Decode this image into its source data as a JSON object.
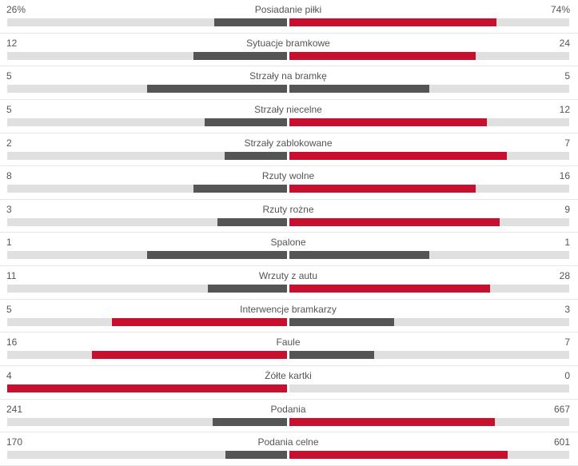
{
  "colors": {
    "leading": "#c8102e",
    "trailing": "#555555",
    "track": "#e0e0e0"
  },
  "stats": [
    {
      "label": "Posiadanie piłki",
      "home": "26%",
      "away": "74%",
      "home_share": 0.26,
      "away_share": 0.74
    },
    {
      "label": "Sytuacje bramkowe",
      "home": "12",
      "away": "24",
      "home_share": 0.333,
      "away_share": 0.667
    },
    {
      "label": "Strzały na bramkę",
      "home": "5",
      "away": "5",
      "home_share": 0.5,
      "away_share": 0.5
    },
    {
      "label": "Strzały niecelne",
      "home": "5",
      "away": "12",
      "home_share": 0.294,
      "away_share": 0.706
    },
    {
      "label": "Strzały zablokowane",
      "home": "2",
      "away": "7",
      "home_share": 0.222,
      "away_share": 0.778
    },
    {
      "label": "Rzuty wolne",
      "home": "8",
      "away": "16",
      "home_share": 0.333,
      "away_share": 0.667
    },
    {
      "label": "Rzuty rożne",
      "home": "3",
      "away": "9",
      "home_share": 0.25,
      "away_share": 0.75
    },
    {
      "label": "Spalone",
      "home": "1",
      "away": "1",
      "home_share": 0.5,
      "away_share": 0.5
    },
    {
      "label": "Wrzuty z autu",
      "home": "11",
      "away": "28",
      "home_share": 0.282,
      "away_share": 0.718
    },
    {
      "label": "Interwencje bramkarzy",
      "home": "5",
      "away": "3",
      "home_share": 0.625,
      "away_share": 0.375
    },
    {
      "label": "Faule",
      "home": "16",
      "away": "7",
      "home_share": 0.696,
      "away_share": 0.304
    },
    {
      "label": "Żółte kartki",
      "home": "4",
      "away": "0",
      "home_share": 1.0,
      "away_share": 0.0
    },
    {
      "label": "Podania",
      "home": "241",
      "away": "667",
      "home_share": 0.265,
      "away_share": 0.735
    },
    {
      "label": "Podania celne",
      "home": "170",
      "away": "601",
      "home_share": 0.22,
      "away_share": 0.78
    }
  ]
}
